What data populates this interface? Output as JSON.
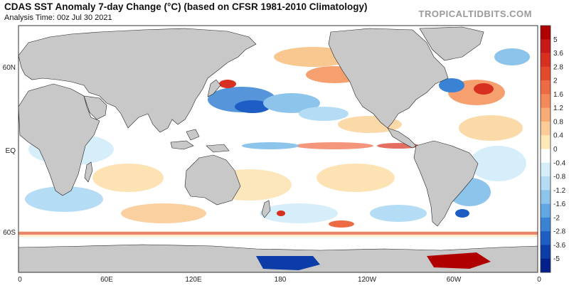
{
  "header": {
    "title": "CDAS SST Anomaly 7-day Change (°C) (based on CFSR 1981-2010 Climatology)",
    "subtitle": "Analysis Time: 00z Jul 30 2021",
    "credit": "TROPICALTIDBITS.COM"
  },
  "map": {
    "lat_labels": [
      "60N",
      "EQ",
      "60S"
    ],
    "lon_labels": [
      "0",
      "60E",
      "120E",
      "180",
      "120W",
      "60W",
      "0"
    ],
    "land_color": "#c8c8c8",
    "ocean_color": "#ffffff"
  },
  "colorbar": {
    "labels": [
      "5",
      "3.6",
      "2.8",
      "2",
      "1.6",
      "1.2",
      "0.8",
      "0.4",
      "0",
      "-0.4",
      "-0.8",
      "-1.2",
      "-1.6",
      "-2",
      "-2.8",
      "-3.6",
      "-5"
    ],
    "colors": [
      "#b00000",
      "#c81818",
      "#d83020",
      "#e54a2c",
      "#ee6a44",
      "#f48a5c",
      "#f8ac78",
      "#fbcc98",
      "#fde8b8",
      "#ffffff",
      "#d6eefa",
      "#b4dcf4",
      "#8cc4ec",
      "#62a6e2",
      "#3a82d4",
      "#1e5ec4",
      "#0c3ca8",
      "#04208a"
    ]
  }
}
